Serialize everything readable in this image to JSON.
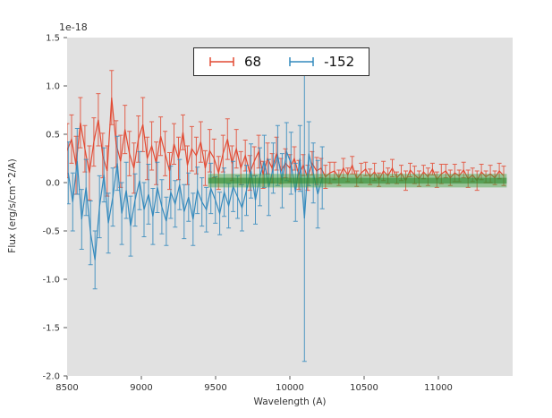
{
  "figure": {
    "background": "#ffffff",
    "axes_background": "#e1e1e1",
    "tick_color": "#555555",
    "text_color": "#333333"
  },
  "chart_data": {
    "type": "line",
    "title": "",
    "xlabel": "Wavelength (A)",
    "ylabel": "Flux (erg/s/cm^2/A)",
    "offset_text": "1e-18",
    "xlim": [
      8500,
      11500
    ],
    "ylim": [
      -2.0,
      1.5
    ],
    "xticks": [
      8500,
      9000,
      9500,
      10000,
      10500,
      11000
    ],
    "yticks": [
      -2.0,
      -1.5,
      -1.0,
      -0.5,
      0.0,
      0.5,
      1.0,
      1.5
    ],
    "grid": false,
    "legend_position": "upper center",
    "band": {
      "color": "#3ca03c",
      "core_color": "#2e8b2e",
      "x_start": 9450,
      "x_end": 11460,
      "y_center": 0.02,
      "y_halfwidth": 0.07,
      "core_halfwidth": 0.03
    },
    "series": [
      {
        "name": "68",
        "color": "#e24a33",
        "x": [
          8500,
          8530,
          8560,
          8590,
          8620,
          8650,
          8680,
          8710,
          8740,
          8770,
          8800,
          8830,
          8860,
          8890,
          8920,
          8950,
          8980,
          9010,
          9040,
          9070,
          9100,
          9130,
          9160,
          9190,
          9220,
          9250,
          9280,
          9310,
          9340,
          9370,
          9400,
          9430,
          9460,
          9490,
          9520,
          9550,
          9580,
          9610,
          9640,
          9670,
          9700,
          9730,
          9760,
          9790,
          9820,
          9850,
          9880,
          9910,
          9940,
          9970,
          10000,
          10030,
          10060,
          10090,
          10120,
          10150,
          10180,
          10210,
          10240,
          10270,
          10300,
          10330,
          10360,
          10390,
          10420,
          10450,
          10480,
          10510,
          10540,
          10570,
          10600,
          10630,
          10660,
          10690,
          10720,
          10750,
          10780,
          10810,
          10840,
          10870,
          10900,
          10930,
          10960,
          10990,
          11020,
          11050,
          11080,
          11110,
          11140,
          11170,
          11200,
          11230,
          11260,
          11290,
          11320,
          11350,
          11380,
          11410,
          11440
        ],
        "y": [
          0.33,
          0.45,
          0.18,
          0.62,
          0.35,
          0.1,
          0.42,
          0.65,
          0.28,
          0.12,
          0.88,
          0.4,
          0.22,
          0.55,
          0.3,
          0.15,
          0.45,
          0.6,
          0.25,
          0.38,
          0.2,
          0.48,
          0.3,
          0.12,
          0.4,
          0.25,
          0.52,
          0.18,
          0.35,
          0.28,
          0.42,
          0.15,
          0.33,
          0.25,
          0.1,
          0.3,
          0.45,
          0.2,
          0.35,
          0.15,
          0.28,
          0.1,
          0.22,
          0.32,
          0.08,
          0.25,
          0.15,
          0.3,
          0.12,
          0.2,
          0.15,
          0.25,
          0.08,
          0.18,
          0.05,
          0.2,
          0.12,
          0.15,
          0.06,
          0.1,
          0.12,
          0.05,
          0.15,
          0.08,
          0.18,
          0.04,
          0.1,
          0.14,
          0.06,
          0.11,
          0.03,
          0.12,
          0.07,
          0.15,
          0.05,
          0.1,
          0.02,
          0.13,
          0.08,
          0.04,
          0.11,
          0.06,
          0.14,
          0.03,
          0.09,
          0.12,
          0.05,
          0.1,
          0.07,
          0.13,
          0.04,
          0.08,
          0.02,
          0.11,
          0.06,
          0.09,
          0.05,
          0.12,
          0.07
        ],
        "yerr": [
          0.28,
          0.25,
          0.3,
          0.26,
          0.24,
          0.28,
          0.25,
          0.27,
          0.23,
          0.26,
          0.28,
          0.24,
          0.27,
          0.25,
          0.23,
          0.26,
          0.24,
          0.28,
          0.22,
          0.25,
          0.22,
          0.2,
          0.23,
          0.19,
          0.21,
          0.22,
          0.18,
          0.2,
          0.23,
          0.19,
          0.21,
          0.18,
          0.22,
          0.2,
          0.17,
          0.19,
          0.21,
          0.18,
          0.2,
          0.17,
          0.16,
          0.18,
          0.15,
          0.17,
          0.14,
          0.16,
          0.15,
          0.17,
          0.13,
          0.15,
          0.14,
          0.12,
          0.15,
          0.11,
          0.13,
          0.12,
          0.14,
          0.1,
          0.12,
          0.11,
          0.09,
          0.08,
          0.1,
          0.07,
          0.09,
          0.08,
          0.1,
          0.07,
          0.08,
          0.09,
          0.07,
          0.1,
          0.08,
          0.09,
          0.06,
          0.08,
          0.1,
          0.07,
          0.09,
          0.08,
          0.07,
          0.09,
          0.06,
          0.08,
          0.1,
          0.07,
          0.08,
          0.09,
          0.06,
          0.08,
          0.09,
          0.07,
          0.1,
          0.08,
          0.06,
          0.09,
          0.07,
          0.08,
          0.1
        ]
      },
      {
        "name": "-152",
        "color": "#348abd",
        "x": [
          8508,
          8538,
          8568,
          8598,
          8628,
          8658,
          8688,
          8718,
          8748,
          8778,
          8808,
          8838,
          8868,
          8898,
          8928,
          8958,
          8988,
          9018,
          9048,
          9078,
          9108,
          9138,
          9168,
          9198,
          9228,
          9258,
          9288,
          9318,
          9348,
          9378,
          9408,
          9438,
          9468,
          9498,
          9528,
          9558,
          9588,
          9618,
          9648,
          9678,
          9708,
          9738,
          9768,
          9798,
          9828,
          9858,
          9888,
          9918,
          9948,
          9978,
          10008,
          10038,
          10068,
          10098,
          10128,
          10158,
          10188,
          10218
        ],
        "y": [
          0.1,
          -0.2,
          0.22,
          -0.38,
          -0.05,
          -0.52,
          -0.8,
          -0.25,
          0.08,
          -0.42,
          -0.15,
          0.2,
          -0.32,
          -0.08,
          -0.45,
          -0.18,
          0.02,
          -0.28,
          -0.12,
          -0.35,
          -0.05,
          -0.25,
          -0.4,
          -0.1,
          -0.22,
          -0.02,
          -0.3,
          -0.15,
          -0.38,
          -0.08,
          -0.2,
          -0.28,
          -0.06,
          -0.18,
          -0.32,
          -0.1,
          -0.24,
          -0.04,
          -0.15,
          -0.26,
          -0.08,
          0.12,
          -0.18,
          0.06,
          0.22,
          -0.05,
          0.15,
          0.28,
          0.02,
          0.32,
          0.2,
          -0.1,
          0.25,
          -0.37,
          0.3,
          0.1,
          -0.12,
          0.05
        ],
        "yerr": [
          0.32,
          0.3,
          0.34,
          0.31,
          0.29,
          0.33,
          0.3,
          0.32,
          0.28,
          0.31,
          0.3,
          0.28,
          0.32,
          0.29,
          0.31,
          0.27,
          0.3,
          0.28,
          0.31,
          0.29,
          0.26,
          0.28,
          0.25,
          0.27,
          0.24,
          0.26,
          0.28,
          0.25,
          0.27,
          0.24,
          0.25,
          0.23,
          0.26,
          0.24,
          0.22,
          0.25,
          0.23,
          0.26,
          0.22,
          0.24,
          0.26,
          0.28,
          0.25,
          0.3,
          0.27,
          0.29,
          0.26,
          0.31,
          0.28,
          0.3,
          0.32,
          0.3,
          0.34,
          1.48,
          0.33,
          0.31,
          0.35,
          0.32
        ]
      }
    ]
  }
}
